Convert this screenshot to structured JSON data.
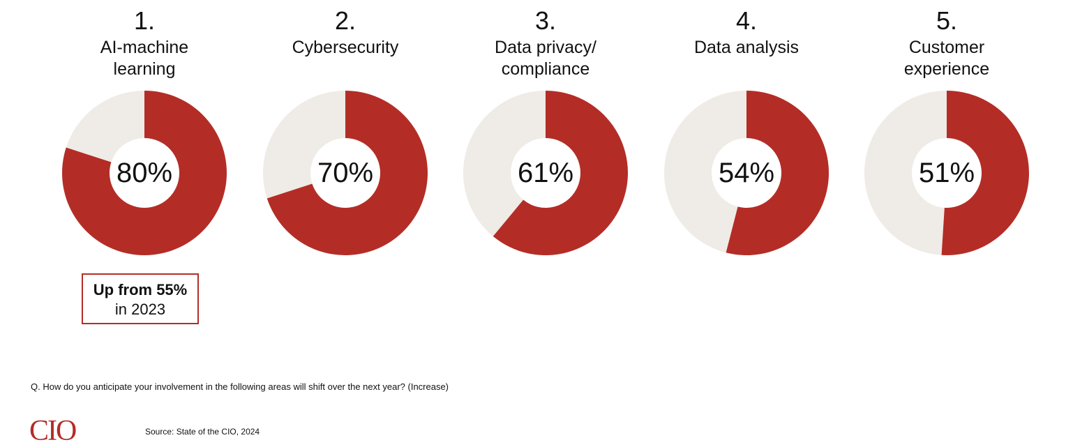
{
  "colors": {
    "accent": "#b32d26",
    "track": "#efebe6"
  },
  "chart_data": {
    "type": "pie",
    "style": "donut",
    "items": [
      {
        "rank": "1.",
        "label": "AI-machine\nlearning",
        "value": 80,
        "display": "80%"
      },
      {
        "rank": "2.",
        "label": "Cybersecurity",
        "value": 70,
        "display": "70%"
      },
      {
        "rank": "3.",
        "label": "Data privacy/\ncompliance",
        "value": 61,
        "display": "61%"
      },
      {
        "rank": "4.",
        "label": "Data analysis",
        "value": 54,
        "display": "54%"
      },
      {
        "rank": "5.",
        "label": "Customer\nexperience",
        "value": 51,
        "display": "51%"
      }
    ],
    "annotation": {
      "strong": "Up from 55%",
      "rest": "in 2023"
    }
  },
  "question": "Q. How do you anticipate your involvement in the following areas will shift over the next year? (Increase)",
  "logo": "CIO",
  "source": "Source: State of the CIO, 2024"
}
